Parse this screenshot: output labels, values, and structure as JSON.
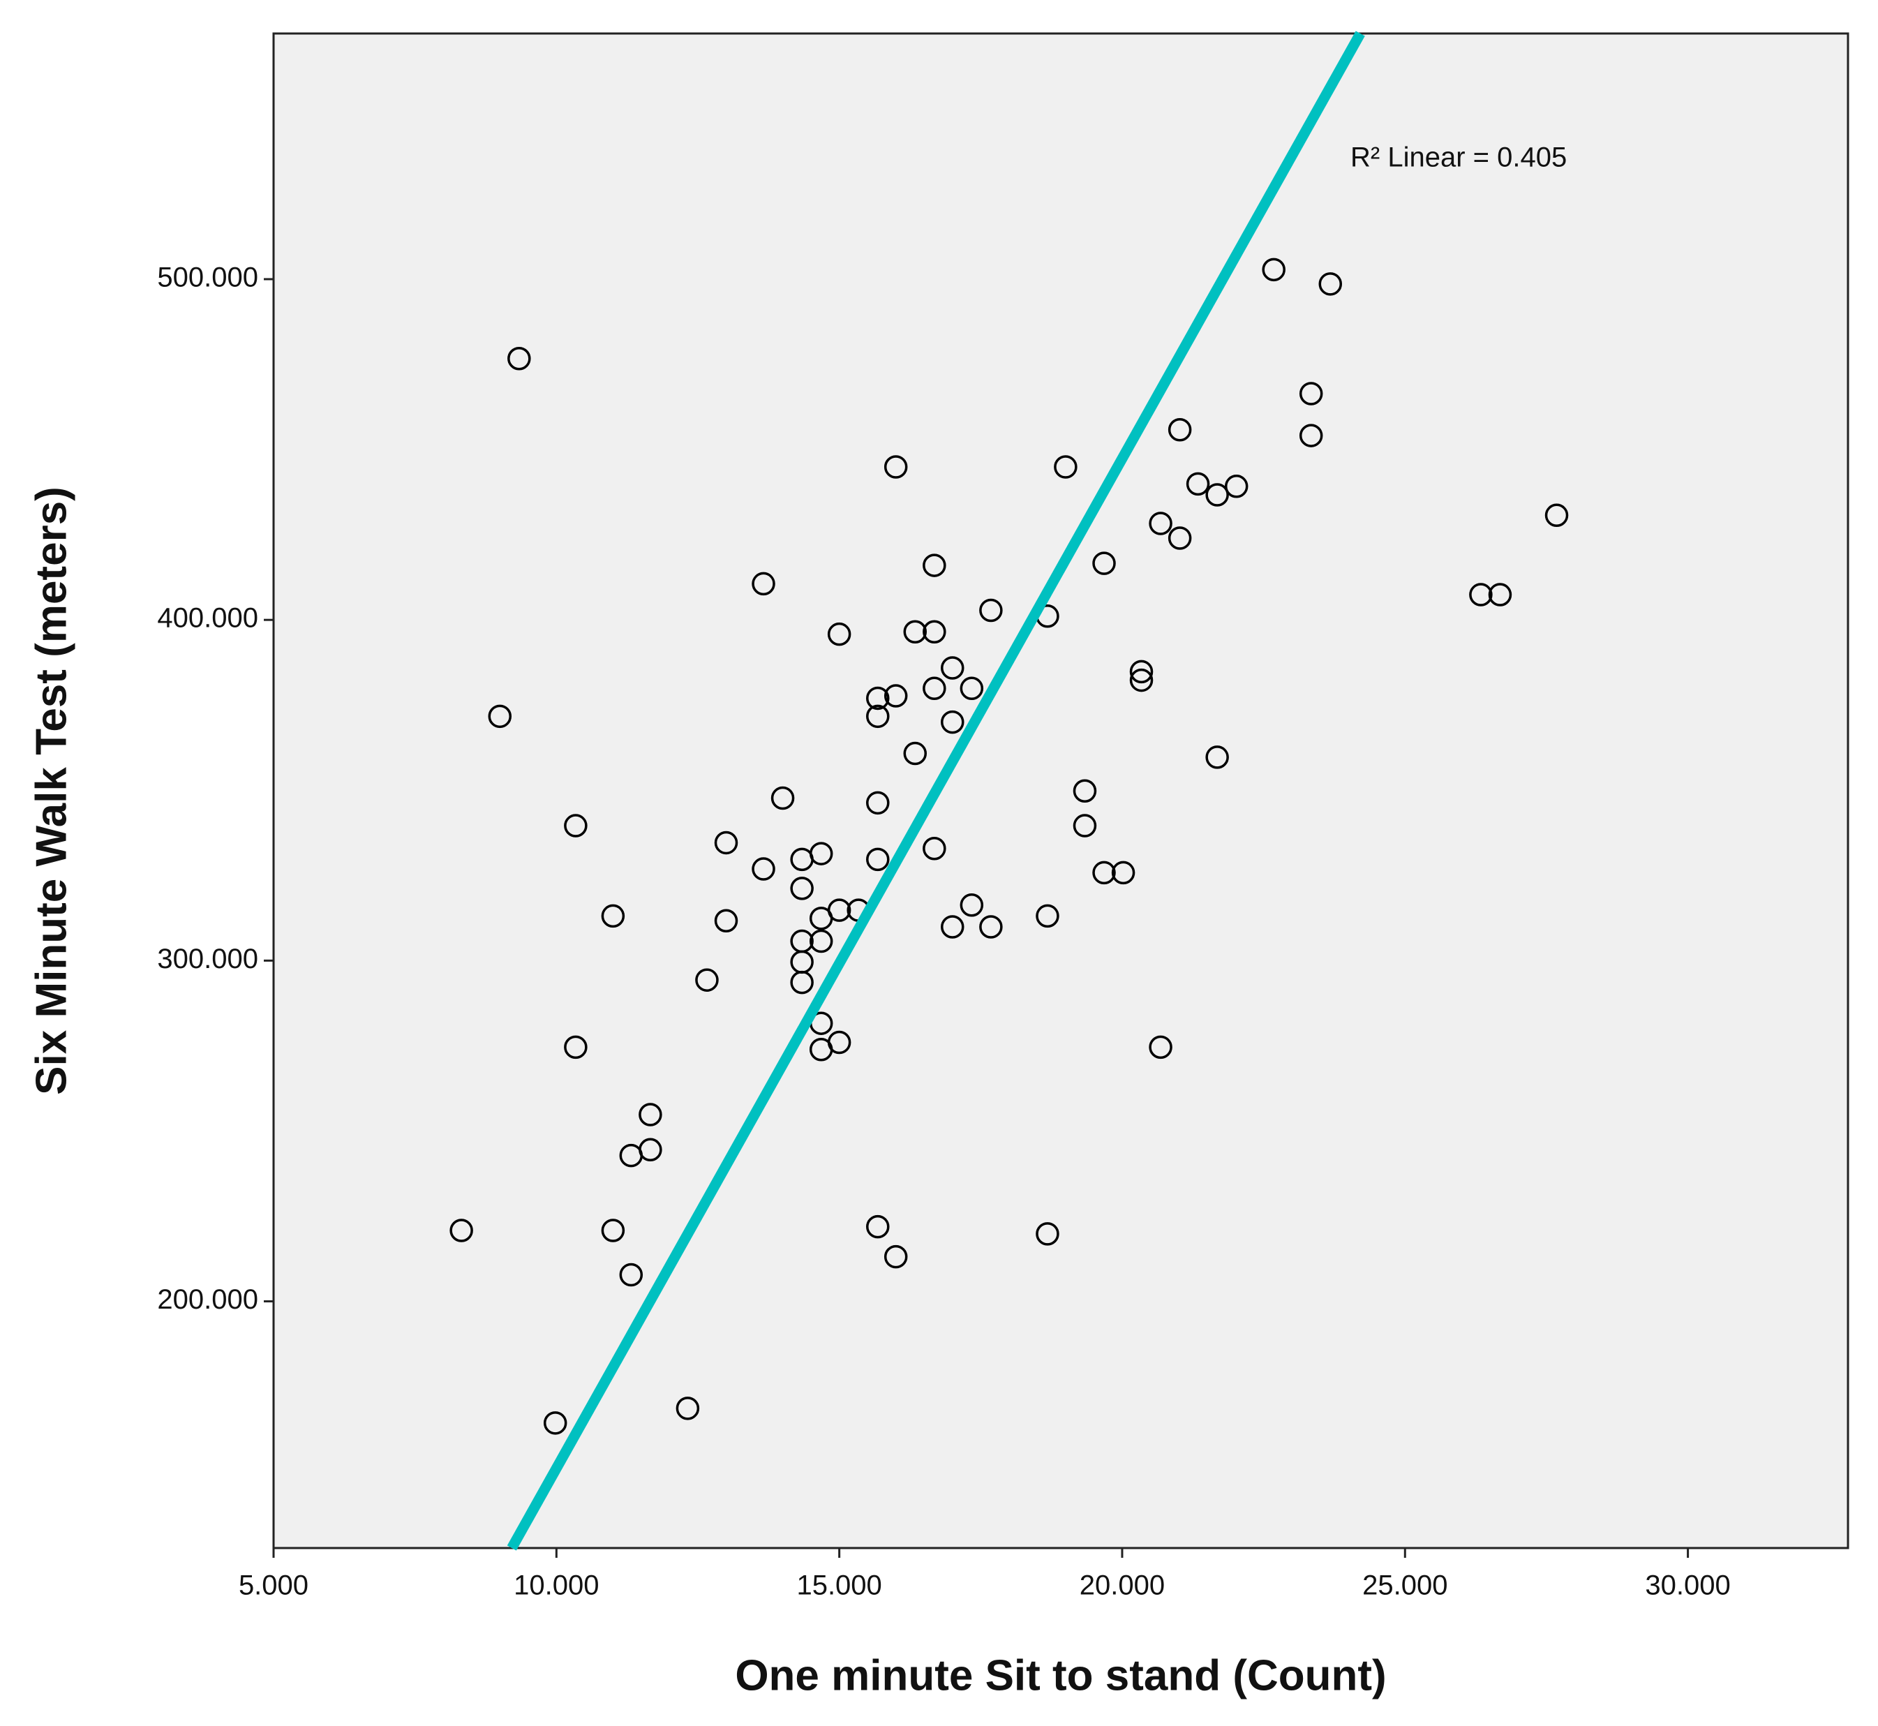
{
  "chart_data": {
    "type": "scatter",
    "x_label": "One minute Sit to stand (Count)",
    "y_label": "Six Minute Walk Test (meters)",
    "annotation": "R² Linear = 0.405",
    "marker_color": "#000000",
    "plot_background": "#f0f0f0",
    "x": [
      9.34,
      9.0,
      8.32,
      10.34,
      10.34,
      11.0,
      11.0,
      9.98,
      11.32,
      11.66,
      11.66,
      11.32,
      12.32,
      12.66,
      13.0,
      13.0,
      13.66,
      13.66,
      14.0,
      14.34,
      14.34,
      14.34,
      14.34,
      14.34,
      14.68,
      14.68,
      14.68,
      14.68,
      14.68,
      15.0,
      15.34,
      15.0,
      15.0,
      15.68,
      15.68,
      15.68,
      15.68,
      15.68,
      16.0,
      16.0,
      16.0,
      16.34,
      16.34,
      16.68,
      16.68,
      16.68,
      16.68,
      17.0,
      17.0,
      17.0,
      17.34,
      17.34,
      17.68,
      17.68,
      18.68,
      18.68,
      18.68,
      19.0,
      19.34,
      19.34,
      19.68,
      19.68,
      20.02,
      20.34,
      20.34,
      20.68,
      20.68,
      21.02,
      21.02,
      21.34,
      21.68,
      21.68,
      22.02,
      22.68,
      23.34,
      23.34,
      23.68,
      26.34,
      26.68,
      27.68
    ],
    "values": [
      476.7,
      371.7,
      220.8,
      339.6,
      274.6,
      313.1,
      220.8,
      164.3,
      242.8,
      244.5,
      254.8,
      207.8,
      168.6,
      294.3,
      334.6,
      311.7,
      326.9,
      410.6,
      347.7,
      329.7,
      321.2,
      305.7,
      299.6,
      293.6,
      331.4,
      312.4,
      305.7,
      281.6,
      273.9,
      314.8,
      314.8,
      395.8,
      276.0,
      377.0,
      371.7,
      346.3,
      329.7,
      221.9,
      377.7,
      444.9,
      213.1,
      396.5,
      360.8,
      416.0,
      396.5,
      379.9,
      332.9,
      385.9,
      370.0,
      309.9,
      379.9,
      316.3,
      402.8,
      309.9,
      401.1,
      313.1,
      219.8,
      444.9,
      349.8,
      339.6,
      416.6,
      325.8,
      325.8,
      384.8,
      382.3,
      428.3,
      274.6,
      455.8,
      424.0,
      439.9,
      436.7,
      359.7,
      439.2,
      502.8,
      466.4,
      454.1,
      498.6,
      407.4,
      407.4,
      430.7
    ],
    "fit_line": {
      "color": "#00c0c0",
      "x": [
        9.21,
        24.21
      ],
      "y": [
        127.6,
        572.1
      ]
    },
    "xlim": [
      5,
      32.83
    ],
    "ylim": [
      127.6,
      572.1
    ],
    "xticks": [
      {
        "value": 5,
        "label": "5.000"
      },
      {
        "value": 10,
        "label": "10.000"
      },
      {
        "value": 15,
        "label": "15.000"
      },
      {
        "value": 20,
        "label": "20.000"
      },
      {
        "value": 25,
        "label": "25.000"
      },
      {
        "value": 30,
        "label": "30.000"
      }
    ],
    "yticks": [
      {
        "value": 200,
        "label": "200.000"
      },
      {
        "value": 300,
        "label": "300.000"
      },
      {
        "value": 400,
        "label": "400.000"
      },
      {
        "value": 500,
        "label": "500.000"
      }
    ]
  }
}
